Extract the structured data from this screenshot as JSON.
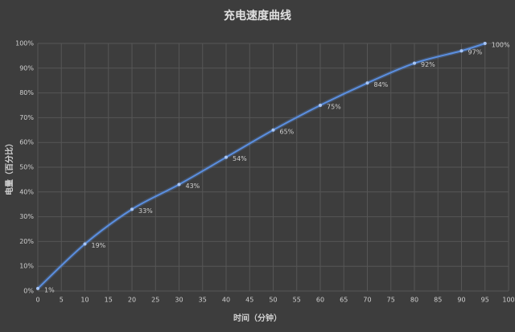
{
  "chart_data": {
    "type": "line",
    "title": "充电速度曲线",
    "x_label": "时间（分钟）",
    "y_label": "电量（百分比）",
    "x": [
      0,
      10,
      20,
      30,
      40,
      50,
      60,
      70,
      80,
      90,
      95
    ],
    "series": [
      {
        "name": "电量",
        "color": "#5b8fe0",
        "values": [
          1,
          19,
          33,
          43,
          54,
          65,
          75,
          84,
          92,
          97,
          100
        ],
        "value_labels": [
          "1%",
          "19%",
          "33%",
          "43%",
          "54%",
          "65%",
          "75%",
          "84%",
          "92%",
          "97%",
          "100%"
        ]
      }
    ],
    "xlim": [
      0,
      100
    ],
    "xticks": [
      0,
      5,
      10,
      15,
      20,
      25,
      30,
      35,
      40,
      45,
      50,
      55,
      60,
      65,
      70,
      75,
      80,
      85,
      90,
      95,
      100
    ],
    "ylim": [
      0,
      100
    ],
    "yticks": [
      {
        "value": 0,
        "label": "0%"
      },
      {
        "value": 10,
        "label": "10%"
      },
      {
        "value": 20,
        "label": "20%"
      },
      {
        "value": 30,
        "label": "30%"
      },
      {
        "value": 40,
        "label": "40%"
      },
      {
        "value": 50,
        "label": "50%"
      },
      {
        "value": 60,
        "label": "60%"
      },
      {
        "value": 70,
        "label": "70%"
      },
      {
        "value": 80,
        "label": "80%"
      },
      {
        "value": 90,
        "label": "90%"
      },
      {
        "value": 100,
        "label": "100%"
      }
    ],
    "grid": true
  }
}
